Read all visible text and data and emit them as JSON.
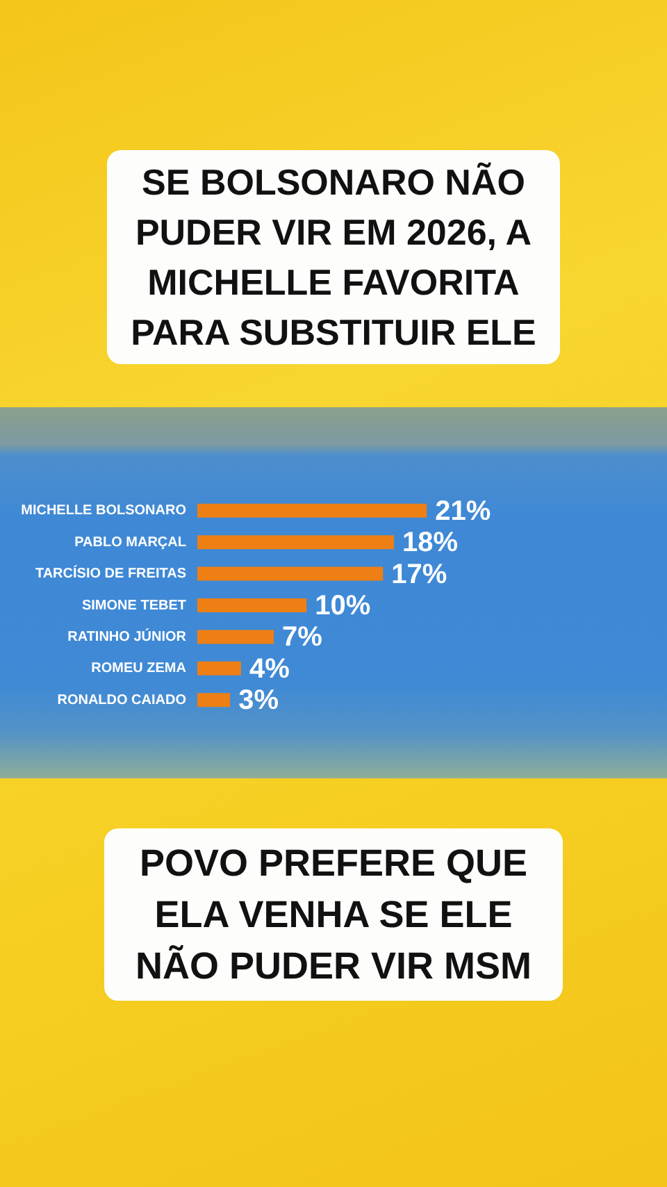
{
  "chart_data": {
    "type": "bar",
    "orientation": "horizontal",
    "title": "SE BOLSONARO NÃO PUDER VIR EM 2026, A MICHELLE FAVORITA PARA SUBSTITUIR ELE",
    "annotations": [
      "POVO PREFERE QUE ELA VENHA SE ELE NÃO PUDER VIR MSM"
    ],
    "categories": [
      "MICHELLE BOLSONARO",
      "PABLO MARÇAL",
      "TARCÍSIO DE FREITAS",
      "SIMONE TEBET",
      "RATINHO JÚNIOR",
      "ROMEU ZEMA",
      "RONALDO CAIADO"
    ],
    "values": [
      21,
      18,
      17,
      10,
      7,
      4,
      3
    ],
    "value_labels": [
      "21%",
      "18%",
      "17%",
      "10%",
      "7%",
      "4%",
      "3%"
    ],
    "color": "#ee7f14",
    "xlim": [
      0,
      43
    ],
    "tick_labels": "y"
  }
}
